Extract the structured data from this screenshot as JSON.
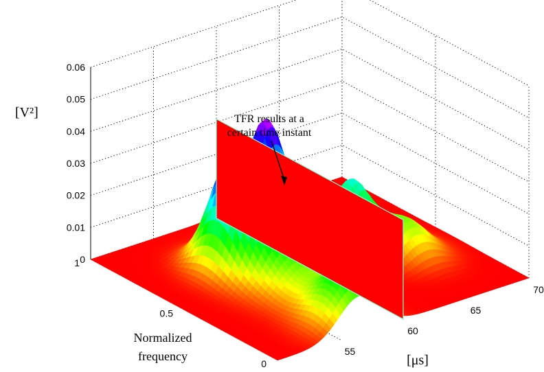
{
  "chart_data": {
    "type": "surface",
    "xlabel": "[μs]",
    "ylabel": "Normalized frequency",
    "ylabel_lines": [
      "Normalized",
      "frequency"
    ],
    "zlabel": "[V²]",
    "xlim": [
      50,
      70
    ],
    "ylim": [
      0,
      1
    ],
    "zlim": [
      0,
      0.06
    ],
    "x_ticks": [
      "55",
      "60",
      "65",
      "70"
    ],
    "y_ticks": [
      "0",
      "0.5",
      "1"
    ],
    "z_ticks": [
      "0",
      "0.01",
      "0.02",
      "0.03",
      "0.04",
      "0.05",
      "0.06"
    ],
    "grid": true,
    "colormap": "red-yellow-green-cyan-blue-magenta",
    "slice": {
      "time": 60,
      "color": "#ff0000"
    },
    "annotation": {
      "lines": [
        "TFR results at a",
        "certain time instant"
      ],
      "arrow_target_time": 60
    },
    "peaks": [
      {
        "time": 56,
        "frequency": 0.62,
        "amplitude": 0.037,
        "width_t": 1.4,
        "width_f": 0.1
      },
      {
        "time": 56.5,
        "frequency": 0.42,
        "amplitude": 0.014,
        "width_t": 1.6,
        "width_f": 0.14
      },
      {
        "time": 56.5,
        "frequency": 0.08,
        "amplitude": 0.016,
        "width_t": 1.6,
        "width_f": 0.1
      },
      {
        "time": 61,
        "frequency": 0.8,
        "amplitude": 0.036,
        "width_t": 1.2,
        "width_f": 0.08
      },
      {
        "time": 64,
        "frequency": 0.55,
        "amplitude": 0.02,
        "width_t": 1.0,
        "width_f": 0.08
      },
      {
        "time": 66,
        "frequency": 0.4,
        "amplitude": 0.011,
        "width_t": 1.4,
        "width_f": 0.1
      }
    ]
  }
}
